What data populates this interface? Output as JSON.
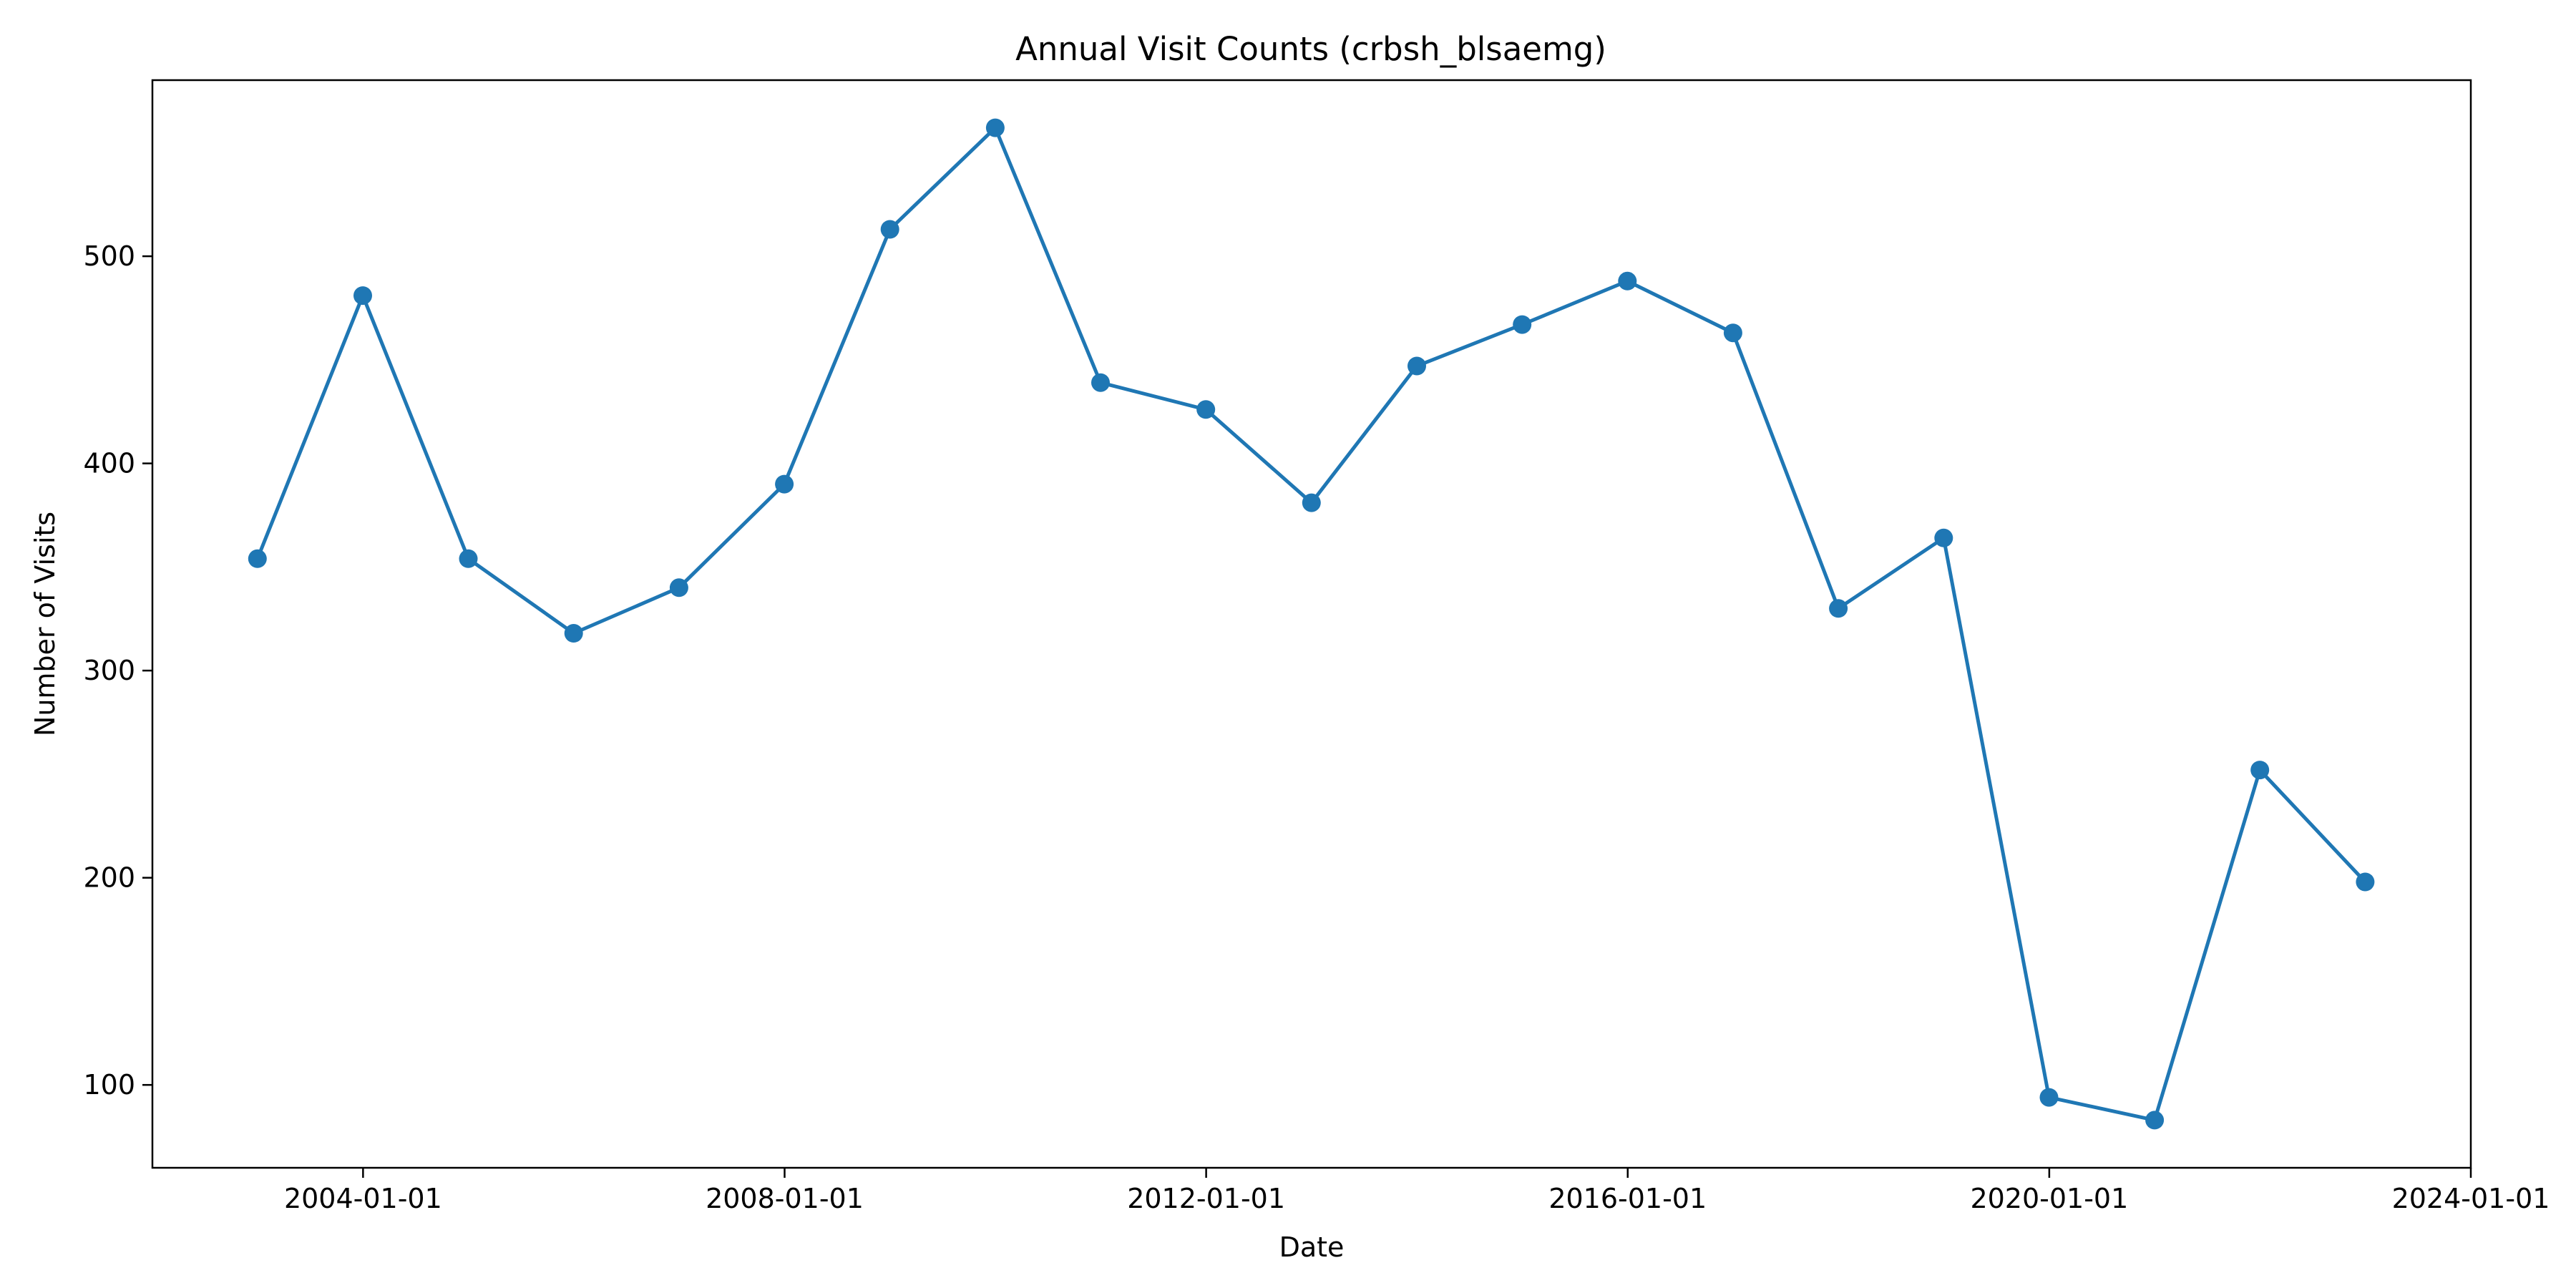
{
  "chart_data": {
    "type": "line",
    "title": "Annual Visit Counts (crbsh_blsaemg)",
    "xlabel": "Date",
    "ylabel": "Number of Visits",
    "grid": false,
    "legend": "none",
    "x_axis": "date",
    "xlim": [
      "2002-01-01",
      "2024-01-01"
    ],
    "ylim": [
      60,
      585
    ],
    "x_ticks": [
      "2004-01-01",
      "2008-01-01",
      "2012-01-01",
      "2016-01-01",
      "2020-01-01",
      "2024-01-01"
    ],
    "y_ticks": [
      100,
      200,
      300,
      400,
      500
    ],
    "series": [
      {
        "color": "#1f77b4",
        "marker": "circle",
        "points": [
          {
            "x": "2002-12-31",
            "y": 354
          },
          {
            "x": "2003-12-31",
            "y": 481
          },
          {
            "x": "2004-12-31",
            "y": 354
          },
          {
            "x": "2005-12-31",
            "y": 318
          },
          {
            "x": "2006-12-31",
            "y": 340
          },
          {
            "x": "2007-12-31",
            "y": 390
          },
          {
            "x": "2008-12-31",
            "y": 513
          },
          {
            "x": "2009-12-31",
            "y": 562
          },
          {
            "x": "2010-12-31",
            "y": 439
          },
          {
            "x": "2011-12-31",
            "y": 426
          },
          {
            "x": "2012-12-31",
            "y": 381
          },
          {
            "x": "2013-12-31",
            "y": 447
          },
          {
            "x": "2014-12-31",
            "y": 467
          },
          {
            "x": "2015-12-31",
            "y": 488
          },
          {
            "x": "2016-12-31",
            "y": 463
          },
          {
            "x": "2017-12-31",
            "y": 330
          },
          {
            "x": "2018-12-31",
            "y": 364
          },
          {
            "x": "2019-12-31",
            "y": 94
          },
          {
            "x": "2020-12-31",
            "y": 83
          },
          {
            "x": "2021-12-31",
            "y": 252
          },
          {
            "x": "2022-12-31",
            "y": 198
          }
        ]
      }
    ]
  }
}
